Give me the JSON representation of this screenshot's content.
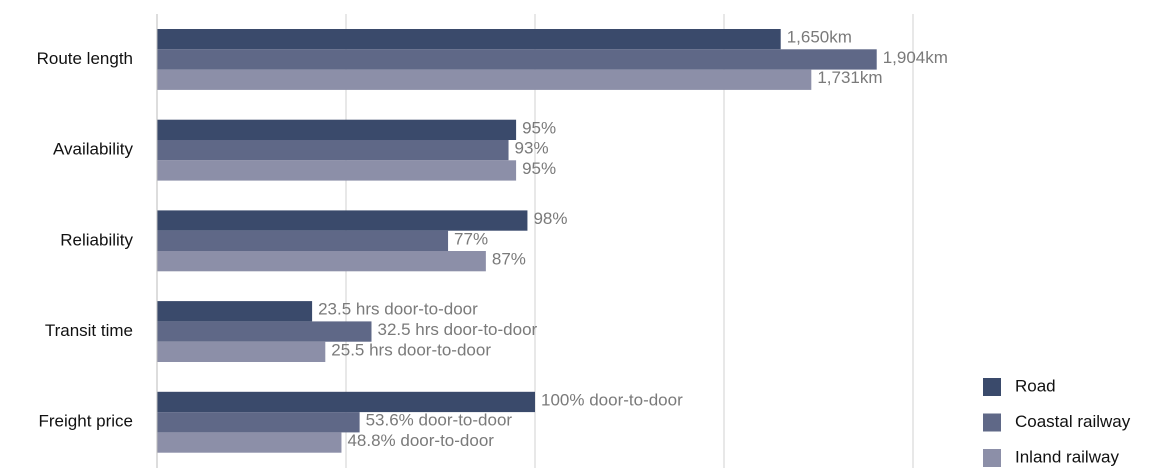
{
  "chart_data": {
    "type": "bar",
    "orientation": "horizontal",
    "categories": [
      "Route length",
      "Availability",
      "Reliability",
      "Transit time",
      "Freight price"
    ],
    "series": [
      {
        "name": "Road",
        "color": "#3a4a6b",
        "values": [
          1650,
          95,
          98,
          23.5,
          100
        ],
        "value_labels": [
          "1,650km",
          "95%",
          "98%",
          "23.5 hrs door-to-door",
          "100% door-to-door"
        ]
      },
      {
        "name": "Coastal railway",
        "color": "#5f6887",
        "values": [
          1904,
          93,
          77,
          32.5,
          53.6
        ],
        "value_labels": [
          "1,904km",
          "93%",
          "77%",
          "32.5 hrs door-to-door",
          "53.6% door-to-door"
        ]
      },
      {
        "name": "Inland railway",
        "color": "#8c8fa8",
        "values": [
          1731,
          95,
          87,
          25.5,
          48.8
        ],
        "value_labels": [
          "1,731km",
          "95%",
          "87%",
          "25.5 hrs door-to-door",
          "48.8% door-to-door"
        ]
      }
    ],
    "legend": "bottom-right",
    "grid": true
  }
}
